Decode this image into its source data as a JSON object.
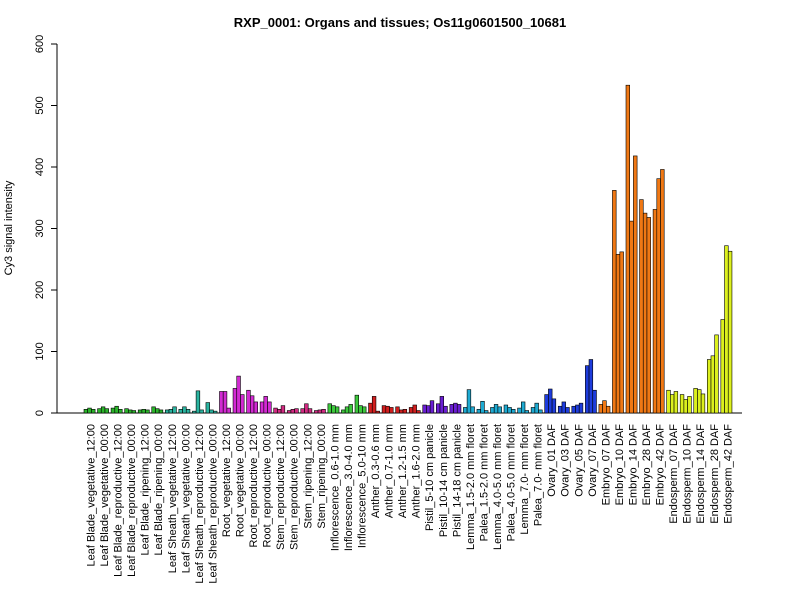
{
  "chart_data": {
    "type": "bar",
    "title": "RXP_0001: Organs and tissues; Os11g0601500_10681",
    "xlabel": "",
    "ylabel": "Cy3 signal intensity",
    "ylim": [
      0,
      600
    ],
    "yticks": [
      0,
      100,
      200,
      300,
      400,
      500,
      600
    ],
    "grid": false,
    "bars_per_group": 3,
    "groups": [
      {
        "label": "Leaf Blade_vegetative_12:00",
        "color": "#2ab42a",
        "values": [
          6,
          8,
          6
        ]
      },
      {
        "label": "Leaf Blade_vegetative_00:00",
        "color": "#2ab42a",
        "values": [
          7,
          10,
          7
        ]
      },
      {
        "label": "Leaf Blade_reproductive_12:00",
        "color": "#2ab42a",
        "values": [
          8,
          11,
          6
        ]
      },
      {
        "label": "Leaf Blade_reproductive_00:00",
        "color": "#2ab42a",
        "values": [
          7,
          5,
          4
        ]
      },
      {
        "label": "Leaf Blade_ripening_12:00",
        "color": "#2ab42a",
        "values": [
          5,
          6,
          5
        ]
      },
      {
        "label": "Leaf Blade_ripening_00:00",
        "color": "#2ab42a",
        "values": [
          10,
          7,
          5
        ]
      },
      {
        "label": "Leaf Sheath_vegetative_12:00",
        "color": "#2ab4a0",
        "values": [
          5,
          6,
          10
        ]
      },
      {
        "label": "Leaf Sheath_vegetative_00:00",
        "color": "#2ab4a0",
        "values": [
          6,
          10,
          6
        ]
      },
      {
        "label": "Leaf Sheath_reproductive_12:00",
        "color": "#2ab4a0",
        "values": [
          3,
          36,
          5
        ]
      },
      {
        "label": "Leaf Sheath_reproductive_00:00",
        "color": "#2ab4a0",
        "values": [
          17,
          5,
          3
        ]
      },
      {
        "label": "Root_vegetative_12:00",
        "color": "#d22ad2",
        "values": [
          35,
          35,
          8
        ]
      },
      {
        "label": "Root_vegetative_00:00",
        "color": "#d22ad2",
        "values": [
          40,
          60,
          30
        ]
      },
      {
        "label": "Root_reproductive_12:00",
        "color": "#d22ad2",
        "values": [
          37,
          28,
          18
        ]
      },
      {
        "label": "Root_reproductive_00:00",
        "color": "#d22ad2",
        "values": [
          18,
          27,
          18
        ]
      },
      {
        "label": "Stem_reproductive_12:00",
        "color": "#d22a82",
        "values": [
          8,
          6,
          12
        ]
      },
      {
        "label": "Stem_reproductive_00:00",
        "color": "#d22a82",
        "values": [
          4,
          6,
          7
        ]
      },
      {
        "label": "Stem_ripening_12:00",
        "color": "#d22a82",
        "values": [
          7,
          15,
          7
        ]
      },
      {
        "label": "Stem_ripening_00:00",
        "color": "#d22a82",
        "values": [
          4,
          5,
          6
        ]
      },
      {
        "label": "Inflorescence_0.6-1.0 mm",
        "color": "#3cc83c",
        "values": [
          15,
          12,
          10
        ]
      },
      {
        "label": "Inflorescence_3.0-4.0 mm",
        "color": "#3cc83c",
        "values": [
          5,
          10,
          14
        ]
      },
      {
        "label": "Inflorescence_5.0-10 mm",
        "color": "#3cc83c",
        "values": [
          29,
          12,
          10
        ]
      },
      {
        "label": "Anther_0.3-0.6 mm",
        "color": "#d21e1e",
        "values": [
          16,
          27,
          3
        ]
      },
      {
        "label": "Anther_0.7-1.0 mm",
        "color": "#d21e1e",
        "values": [
          12,
          11,
          9
        ]
      },
      {
        "label": "Anther_1.2-1.5 mm",
        "color": "#d21e1e",
        "values": [
          10,
          5,
          6
        ]
      },
      {
        "label": "Anther_1.6-2.0 mm",
        "color": "#d21e1e",
        "values": [
          9,
          13,
          4
        ]
      },
      {
        "label": "Pistil_5-10 cm panicle",
        "color": "#6a1ed2",
        "values": [
          13,
          12,
          20
        ]
      },
      {
        "label": "Pistil_10-14 cm panicle",
        "color": "#6a1ed2",
        "values": [
          15,
          27,
          11
        ]
      },
      {
        "label": "Pistil_14-18 cm panicle",
        "color": "#6a1ed2",
        "values": [
          14,
          16,
          14
        ]
      },
      {
        "label": "Lemma_1.5-2.0 mm floret",
        "color": "#1eaad2",
        "values": [
          9,
          38,
          10
        ]
      },
      {
        "label": "Palea_1.5-2.0 mm floret",
        "color": "#1eaad2",
        "values": [
          6,
          19,
          4
        ]
      },
      {
        "label": "Lemma_4.0-5.0 mm floret",
        "color": "#1eaad2",
        "values": [
          9,
          14,
          10
        ]
      },
      {
        "label": "Palea_4.0-5.0 mm floret",
        "color": "#1eaad2",
        "values": [
          13,
          9,
          6
        ]
      },
      {
        "label": "Lemma_7.0- mm floret",
        "color": "#1eaad2",
        "values": [
          8,
          18,
          4
        ]
      },
      {
        "label": "Palea_7.0- mm floret",
        "color": "#1eaad2",
        "values": [
          9,
          16,
          5
        ]
      },
      {
        "label": "Ovary_01 DAF",
        "color": "#1e3cdc",
        "values": [
          30,
          39,
          23
        ]
      },
      {
        "label": "Ovary_03 DAF",
        "color": "#1e3cdc",
        "values": [
          11,
          18,
          9
        ]
      },
      {
        "label": "Ovary_05 DAF",
        "color": "#1e3cdc",
        "values": [
          11,
          13,
          16
        ]
      },
      {
        "label": "Ovary_07 DAF",
        "color": "#1e3cdc",
        "values": [
          77,
          87,
          37
        ]
      },
      {
        "label": "Embryo_07 DAF",
        "color": "#f07814",
        "values": [
          14,
          20,
          11
        ]
      },
      {
        "label": "Embryo_10 DAF",
        "color": "#f07814",
        "values": [
          362,
          258,
          262
        ]
      },
      {
        "label": "Embryo_14 DAF",
        "color": "#f07814",
        "values": [
          533,
          312,
          418
        ]
      },
      {
        "label": "Embryo_28 DAF",
        "color": "#f07814",
        "values": [
          347,
          325,
          318
        ]
      },
      {
        "label": "Embryo_42 DAF",
        "color": "#f07814",
        "values": [
          331,
          381,
          396
        ]
      },
      {
        "label": "Endosperm_07 DAF",
        "color": "#dcf01e",
        "values": [
          37,
          30,
          35
        ]
      },
      {
        "label": "Endosperm_10 DAF",
        "color": "#dcf01e",
        "values": [
          30,
          22,
          27
        ]
      },
      {
        "label": "Endosperm_14 DAF",
        "color": "#dcf01e",
        "values": [
          40,
          38,
          31
        ]
      },
      {
        "label": "Endosperm_28 DAF",
        "color": "#dcf01e",
        "values": [
          87,
          93,
          127
        ]
      },
      {
        "label": "Endosperm_42 DAF",
        "color": "#dcf01e",
        "values": [
          152,
          272,
          263
        ]
      }
    ]
  }
}
